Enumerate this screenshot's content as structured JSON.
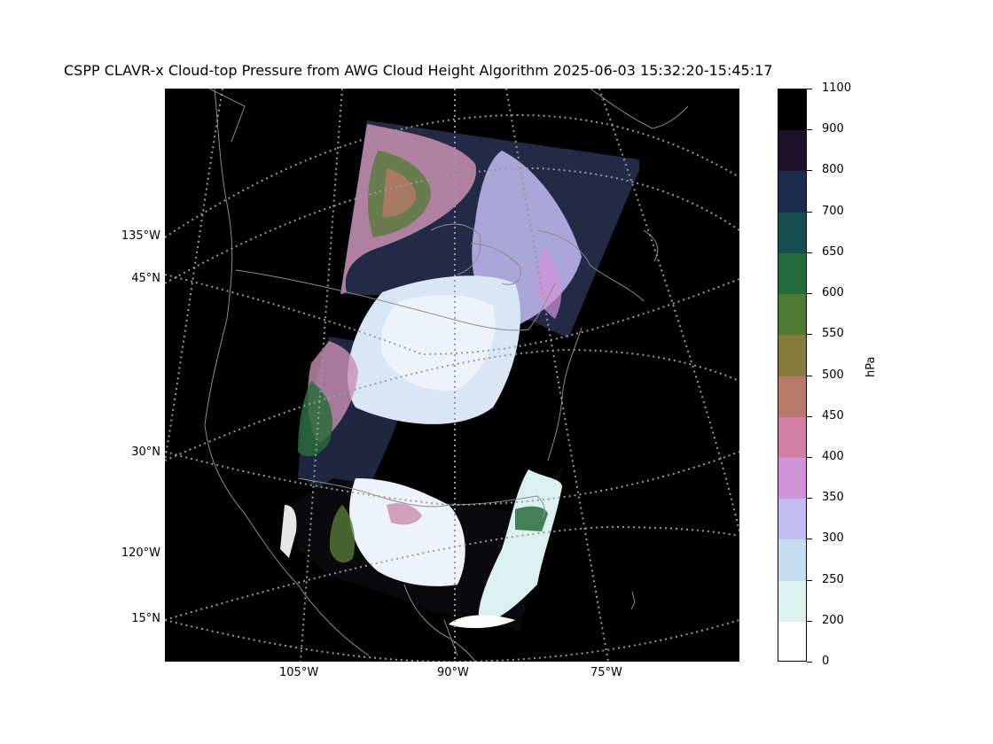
{
  "title": "CSPP CLAVR-x Cloud-top Pressure from AWG Cloud Height Algorithm 2025-06-03 15:32:20-15:45:17",
  "map": {
    "background": "#000000",
    "gridline_color": "#9a9a9a",
    "coastline_color": "#8c8c8c",
    "left_labels": [
      "135°W",
      "45°N",
      "30°N",
      "120°W",
      "15°N"
    ],
    "bottom_labels": [
      "105°W",
      "90°W",
      "75°W"
    ]
  },
  "colorbar": {
    "unit_label": "hPa",
    "tick_labels": [
      "1100",
      "900",
      "800",
      "700",
      "650",
      "600",
      "550",
      "500",
      "450",
      "400",
      "350",
      "300",
      "250",
      "200",
      "0"
    ],
    "colors_top_to_bottom": [
      "#000000",
      "#1d1229",
      "#1c2a4b",
      "#174e52",
      "#226b3c",
      "#4c7a31",
      "#877b39",
      "#b8786a",
      "#d27fa3",
      "#d393d9",
      "#c3bcf1",
      "#c6dcf1",
      "#dbf1ef",
      "#ffffff"
    ]
  }
}
